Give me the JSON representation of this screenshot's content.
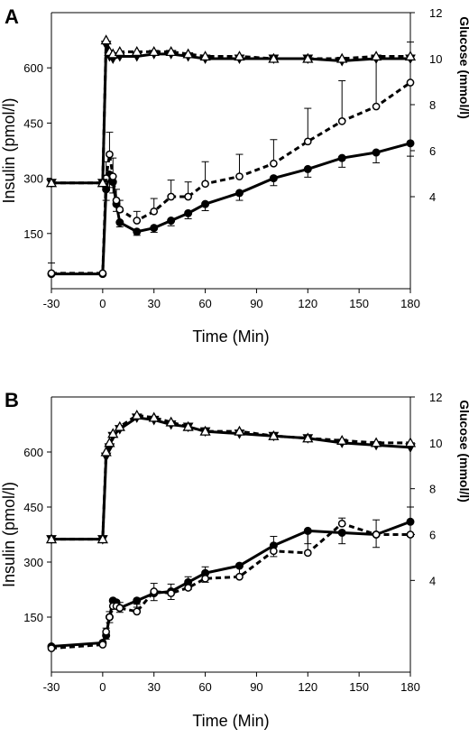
{
  "chart_data": [
    {
      "type": "line",
      "panel_label": "A",
      "xlabel": "Time (Min)",
      "ylabel_left": "Insulin (pmol/l)",
      "ylabel_right": "Glucose (mmol/l)",
      "xlim": [
        -30,
        180
      ],
      "ylim_left": [
        0,
        750
      ],
      "ylim_right": [
        0,
        12
      ],
      "x_ticks": [
        -30,
        0,
        30,
        60,
        90,
        120,
        150,
        180
      ],
      "y_ticks_left": [
        150,
        300,
        450,
        600
      ],
      "y_ticks_right": [
        4,
        6,
        8,
        10,
        12
      ],
      "series": [
        {
          "marker": "filled-circle",
          "line": "solid",
          "axis": "left",
          "x": [
            -30,
            0,
            2,
            4,
            6,
            8,
            10,
            20,
            30,
            40,
            50,
            60,
            80,
            100,
            120,
            140,
            160,
            180
          ],
          "y": [
            40,
            40,
            270,
            310,
            290,
            230,
            180,
            155,
            165,
            185,
            205,
            230,
            260,
            300,
            325,
            355,
            370,
            395
          ],
          "err": [
            0,
            0,
            30,
            35,
            30,
            20,
            12,
            10,
            12,
            14,
            15,
            18,
            20,
            20,
            22,
            25,
            28,
            35
          ]
        },
        {
          "marker": "open-circle",
          "line": "dashed",
          "axis": "left",
          "x": [
            -30,
            0,
            2,
            4,
            6,
            8,
            10,
            20,
            30,
            40,
            50,
            60,
            80,
            100,
            120,
            140,
            160,
            180
          ],
          "y": [
            42,
            42,
            300,
            365,
            305,
            240,
            215,
            185,
            210,
            250,
            250,
            285,
            305,
            340,
            400,
            455,
            495,
            560
          ],
          "err": [
            28,
            0,
            45,
            60,
            50,
            30,
            25,
            25,
            35,
            45,
            40,
            60,
            60,
            65,
            90,
            110,
            130,
            110
          ]
        },
        {
          "marker": "filled-triangle",
          "line": "solid",
          "axis": "right",
          "x": [
            -30,
            0,
            2,
            4,
            6,
            10,
            20,
            30,
            40,
            50,
            60,
            80,
            100,
            120,
            140,
            160,
            180
          ],
          "y": [
            4.6,
            4.6,
            10.6,
            10.1,
            10.0,
            10.1,
            10.1,
            10.2,
            10.2,
            10.1,
            10.0,
            10.0,
            10.0,
            10.0,
            9.9,
            10.0,
            10.0
          ]
        },
        {
          "marker": "open-triangle",
          "line": "dashed",
          "axis": "right",
          "x": [
            -30,
            0,
            2,
            4,
            6,
            10,
            20,
            30,
            40,
            50,
            60,
            80,
            100,
            120,
            140,
            160,
            180
          ],
          "y": [
            4.6,
            4.6,
            10.8,
            10.3,
            10.2,
            10.3,
            10.3,
            10.3,
            10.3,
            10.2,
            10.1,
            10.1,
            10.0,
            10.0,
            10.0,
            10.1,
            10.1
          ]
        }
      ]
    },
    {
      "type": "line",
      "panel_label": "B",
      "xlabel": "Time (Min)",
      "ylabel_left": "Insulin (pmol/l)",
      "ylabel_right": "Glucose (mmol/l)",
      "xlim": [
        -30,
        180
      ],
      "ylim_left": [
        0,
        750
      ],
      "ylim_right": [
        0,
        12
      ],
      "x_ticks": [
        -30,
        0,
        30,
        60,
        90,
        120,
        150,
        180
      ],
      "y_ticks_left": [
        150,
        300,
        450,
        600
      ],
      "y_ticks_right": [
        4,
        6,
        8,
        10,
        12
      ],
      "series": [
        {
          "marker": "filled-circle",
          "line": "solid",
          "axis": "left",
          "x": [
            -30,
            0,
            2,
            4,
            6,
            8,
            10,
            20,
            30,
            40,
            50,
            60,
            80,
            100,
            120,
            140,
            160,
            180
          ],
          "y": [
            70,
            80,
            100,
            150,
            195,
            190,
            175,
            195,
            215,
            220,
            245,
            270,
            290,
            345,
            385,
            380,
            375,
            410
          ],
          "err": [
            0,
            0,
            10,
            15,
            18,
            15,
            12,
            18,
            20,
            22,
            20,
            25,
            25,
            30,
            35,
            30,
            35,
            40
          ]
        },
        {
          "marker": "open-circle",
          "line": "dashed",
          "axis": "left",
          "x": [
            -30,
            0,
            2,
            4,
            6,
            8,
            10,
            20,
            30,
            40,
            50,
            60,
            80,
            100,
            120,
            140,
            160,
            180
          ],
          "y": [
            65,
            75,
            110,
            150,
            180,
            180,
            175,
            165,
            220,
            215,
            230,
            255,
            260,
            330,
            325,
            405,
            375,
            375
          ],
          "err": [
            0,
            0,
            10,
            15,
            18,
            15,
            15,
            20,
            22,
            25,
            30,
            32,
            35,
            40,
            55,
            15,
            40,
            75
          ]
        },
        {
          "marker": "filled-triangle",
          "line": "solid",
          "axis": "right",
          "x": [
            -30,
            0,
            2,
            4,
            6,
            10,
            20,
            30,
            40,
            50,
            60,
            80,
            100,
            120,
            140,
            160,
            180
          ],
          "y": [
            5.8,
            5.8,
            9.4,
            9.8,
            10.3,
            10.6,
            11.1,
            11.0,
            10.8,
            10.7,
            10.5,
            10.4,
            10.3,
            10.2,
            10.0,
            9.9,
            9.8
          ]
        },
        {
          "marker": "open-triangle",
          "line": "dashed",
          "axis": "right",
          "x": [
            -30,
            0,
            2,
            4,
            6,
            10,
            20,
            30,
            40,
            50,
            60,
            80,
            100,
            120,
            140,
            160,
            180
          ],
          "y": [
            5.8,
            5.8,
            9.6,
            10.0,
            10.4,
            10.7,
            11.2,
            11.1,
            10.9,
            10.7,
            10.5,
            10.5,
            10.3,
            10.2,
            10.1,
            10.0,
            10.0
          ]
        }
      ]
    }
  ]
}
